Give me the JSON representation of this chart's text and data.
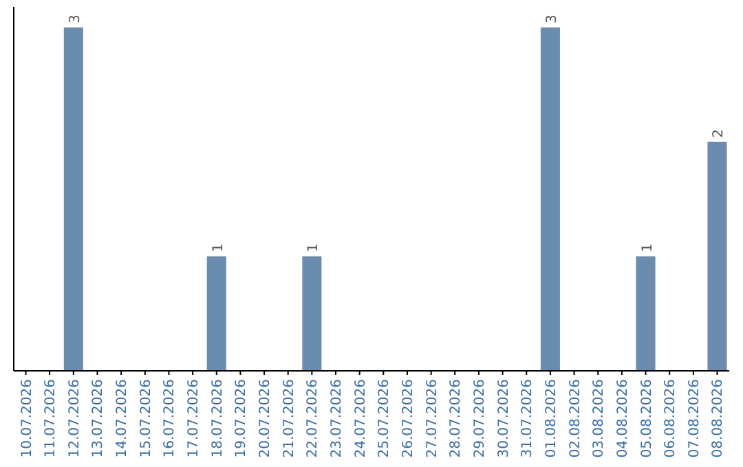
{
  "chart_data": {
    "type": "bar",
    "categories": [
      "10.07.2026",
      "11.07.2026",
      "12.07.2026",
      "13.07.2026",
      "14.07.2026",
      "15.07.2026",
      "16.07.2026",
      "17.07.2026",
      "18.07.2026",
      "19.07.2026",
      "20.07.2026",
      "21.07.2026",
      "22.07.2026",
      "23.07.2026",
      "24.07.2026",
      "25.07.2026",
      "26.07.2026",
      "27.07.2026",
      "28.07.2026",
      "29.07.2026",
      "30.07.2026",
      "31.07.2026",
      "01.08.2026",
      "02.08.2026",
      "03.08.2026",
      "04.08.2026",
      "05.08.2026",
      "06.08.2026",
      "07.08.2026",
      "08.08.2026"
    ],
    "values": [
      0,
      0,
      3,
      0,
      0,
      0,
      0,
      0,
      1,
      0,
      0,
      0,
      1,
      0,
      0,
      0,
      0,
      0,
      0,
      0,
      0,
      0,
      3,
      0,
      0,
      0,
      1,
      0,
      0,
      2
    ],
    "value_labels": [
      null,
      null,
      "3",
      null,
      null,
      null,
      null,
      null,
      "1",
      null,
      null,
      null,
      "1",
      null,
      null,
      null,
      null,
      null,
      null,
      null,
      null,
      null,
      "3",
      null,
      null,
      null,
      "1",
      null,
      null,
      "2"
    ],
    "color": "#6a8caf",
    "grid": false
  }
}
